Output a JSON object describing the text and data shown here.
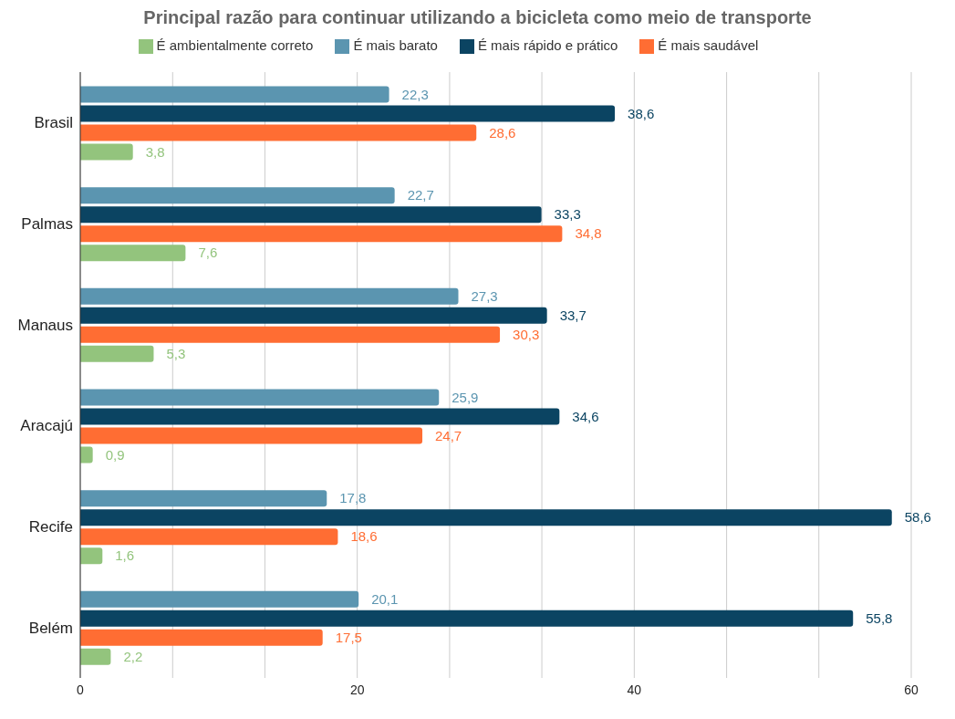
{
  "chart_data": {
    "type": "bar",
    "orientation": "horizontal",
    "title": "Principal razão para continuar utilizando a bicicleta como meio de transporte",
    "categories": [
      "Brasil",
      "Palmas",
      "Manaus",
      "Aracajú",
      "Recife",
      "Belém"
    ],
    "series": [
      {
        "name": "É mais barato",
        "color": "#5b95b0",
        "values": [
          22.3,
          22.7,
          27.3,
          25.9,
          17.8,
          20.1
        ],
        "value_labels": [
          "22,3",
          "22,7",
          "27,3",
          "25,9",
          "17,8",
          "20,1"
        ]
      },
      {
        "name": "É mais rápido e prático",
        "color": "#0b4462",
        "values": [
          38.6,
          33.3,
          33.7,
          34.6,
          58.6,
          55.8
        ],
        "value_labels": [
          "38,6",
          "33,3",
          "33,7",
          "34,6",
          "58,6",
          "55,8"
        ]
      },
      {
        "name": "É mais saudável",
        "color": "#ff6d33",
        "values": [
          28.6,
          34.8,
          30.3,
          24.7,
          18.6,
          17.5
        ],
        "value_labels": [
          "28,6",
          "34,8",
          "30,3",
          "24,7",
          "18,6",
          "17,5"
        ]
      },
      {
        "name": "É ambientalmente correto",
        "color": "#93c47d",
        "values": [
          3.8,
          7.6,
          5.3,
          0.9,
          1.6,
          2.2
        ],
        "value_labels": [
          "3,8",
          "7,6",
          "5,3",
          "0,9",
          "1,6",
          "2,2"
        ]
      }
    ],
    "xlim": [
      0,
      60
    ],
    "xticks": [
      0,
      {
        "value": 6.67,
        "label": null
      },
      {
        "value": 13.33,
        "label": null
      },
      20,
      {
        "value": 26.67,
        "label": null
      },
      {
        "value": 33.33,
        "label": null
      },
      40,
      {
        "value": 46.67,
        "label": null
      },
      {
        "value": 53.33,
        "label": null
      },
      60
    ],
    "grid": "x",
    "legend": "top"
  }
}
